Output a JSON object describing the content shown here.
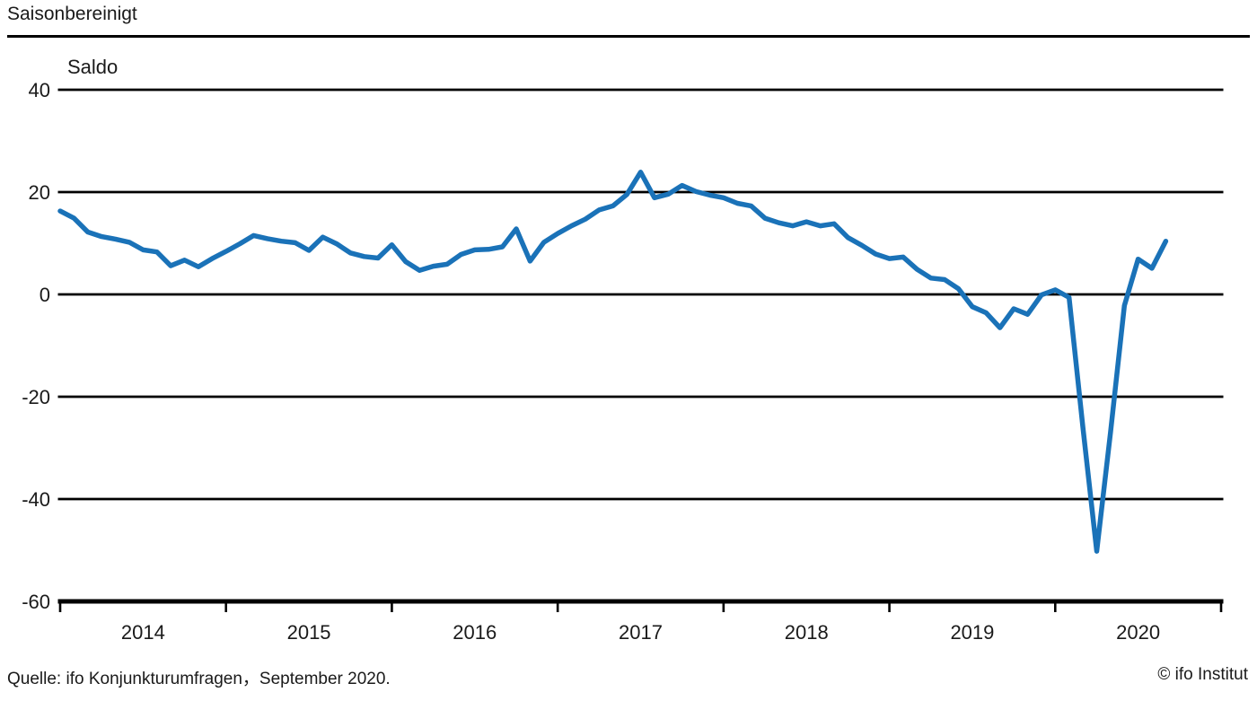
{
  "header": {
    "title": "Saisonbereinigt"
  },
  "footer": {
    "source": "Quelle: ifo Konjunkturumfragen，September 2020.",
    "copyright": "© ifo Institut"
  },
  "chart_data": {
    "type": "line",
    "title": "Saisonbereinigt",
    "value_label": "Saldo",
    "frequency": "monthly",
    "x_start": "2014-01",
    "x_end": "2020-09",
    "x_tick_years": [
      "2014",
      "2015",
      "2016",
      "2017",
      "2018",
      "2019",
      "2020"
    ],
    "ylim": [
      -60,
      40
    ],
    "yticks": [
      40,
      20,
      0,
      -20,
      -40,
      -60
    ],
    "grid": "horizontal",
    "legend": "none",
    "line_color": "#1a72b8",
    "axis_color": "#000000",
    "series": [
      {
        "name": "Saldo",
        "values": [
          16.3,
          14.9,
          12.2,
          11.3,
          10.8,
          10.2,
          8.7,
          8.3,
          5.6,
          6.7,
          5.4,
          7.0,
          8.4,
          9.9,
          11.5,
          10.9,
          10.4,
          10.1,
          8.6,
          11.2,
          9.9,
          8.1,
          7.4,
          7.1,
          9.7,
          6.4,
          4.7,
          5.5,
          5.9,
          7.8,
          8.7,
          8.8,
          9.3,
          12.8,
          6.5,
          10.2,
          11.9,
          13.4,
          14.7,
          16.5,
          17.3,
          19.5,
          23.9,
          18.9,
          19.6,
          21.3,
          20.1,
          19.4,
          18.9,
          17.8,
          17.3,
          14.9,
          14.0,
          13.4,
          14.2,
          13.4,
          13.8,
          11.1,
          9.6,
          7.9,
          7.0,
          7.3,
          4.9,
          3.2,
          2.9,
          1.1,
          -2.4,
          -3.6,
          -6.5,
          -2.8,
          -3.9,
          -0.1,
          0.9,
          -0.6,
          -26.0,
          -50.2,
          -26.9,
          -2.2,
          6.9,
          5.1,
          10.4
        ]
      }
    ]
  }
}
